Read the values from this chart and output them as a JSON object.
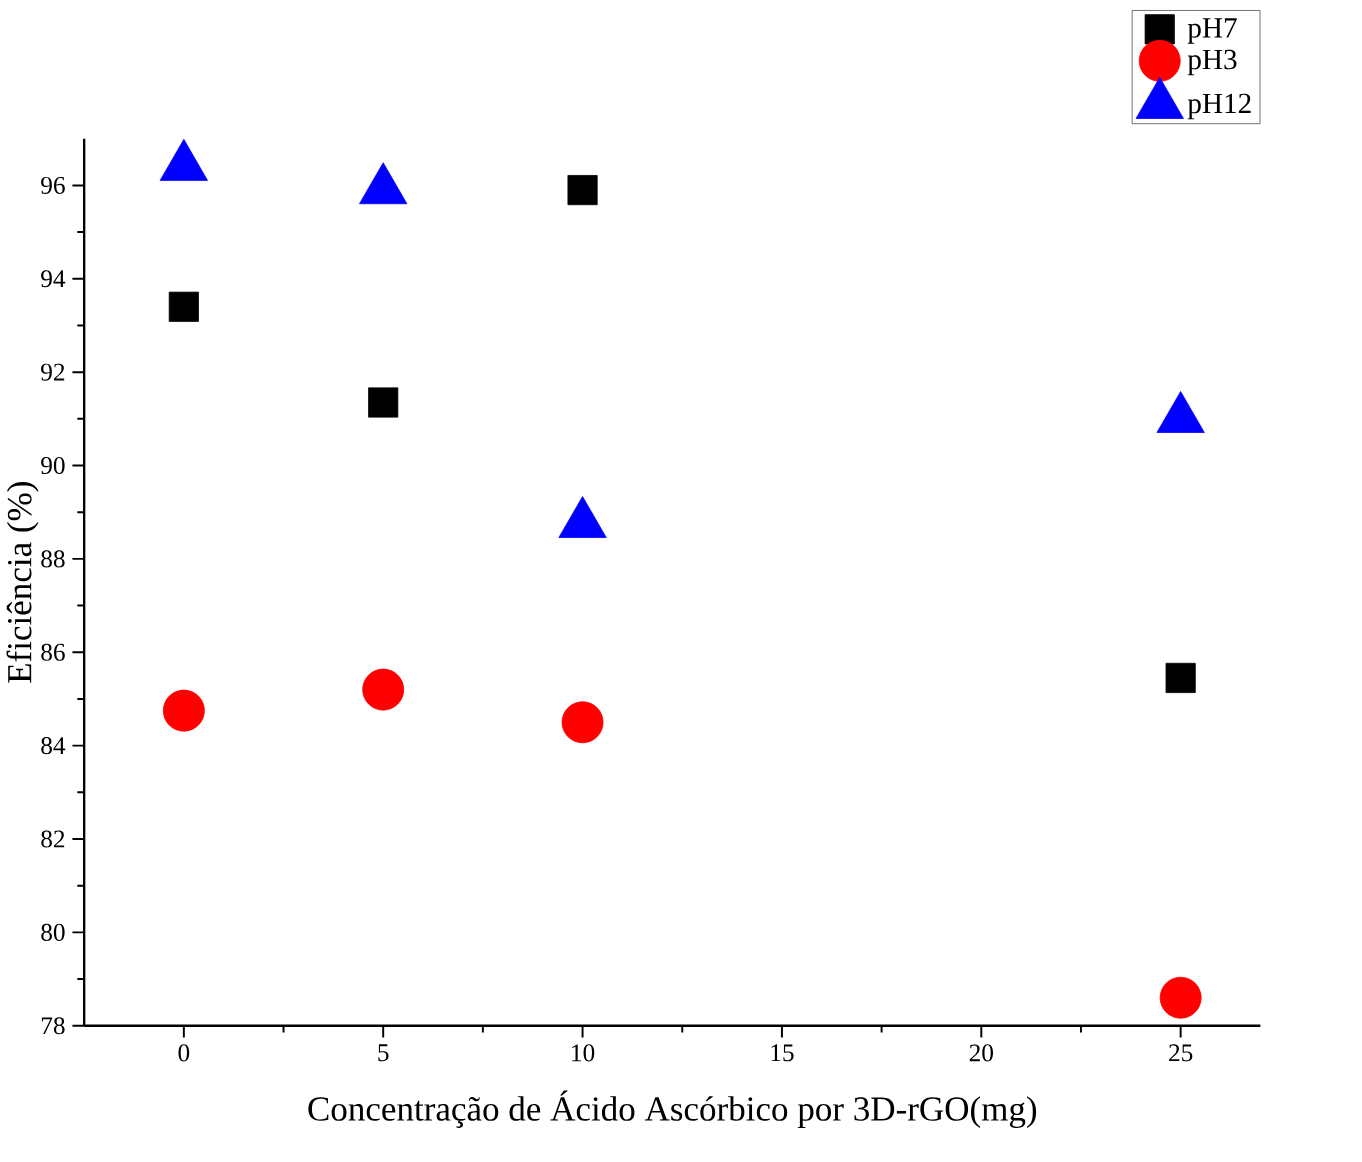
{
  "chart_data": {
    "type": "scatter",
    "xlabel": "Concentração de Ácido Ascórbico por 3D-rGO(mg)",
    "ylabel": "Eficiência (%)",
    "x": [
      0,
      5,
      10,
      25
    ],
    "series": [
      {
        "name": "pH7",
        "color": "#000000",
        "marker": "square",
        "values": [
          93.4,
          91.35,
          95.9,
          85.45
        ]
      },
      {
        "name": "pH3",
        "color": "#ff0000",
        "marker": "circle",
        "values": [
          84.75,
          85.2,
          84.5,
          78.6
        ]
      },
      {
        "name": "pH12",
        "color": "#0000ff",
        "marker": "triangle",
        "values": [
          96.4,
          95.9,
          88.75,
          91.0
        ]
      }
    ],
    "xlim": [
      -2.5,
      27
    ],
    "ylim": [
      78,
      97
    ],
    "xticks": [
      0,
      5,
      10,
      15,
      20,
      25
    ],
    "yticks": [
      78,
      80,
      82,
      84,
      86,
      88,
      90,
      92,
      94,
      96
    ],
    "grid": false,
    "legend": "top right"
  }
}
